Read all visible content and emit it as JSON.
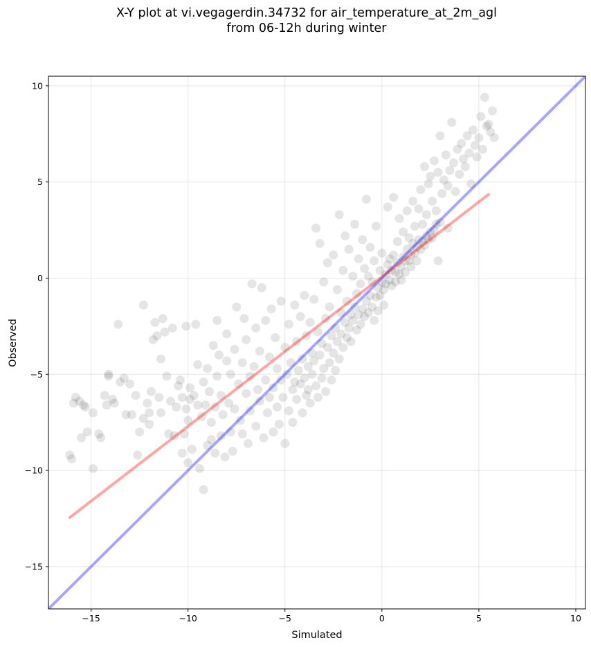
{
  "figure": {
    "title_line1": "X-Y plot at vi.vegagerdin.34732 for air_temperature_at_2m_agl",
    "title_line2": "from 06-12h during winter"
  },
  "chart_data": {
    "type": "scatter",
    "title": "X-Y plot at vi.vegagerdin.34732 for air_temperature_at_2m_agl from 06-12h during winter",
    "xlabel": "Simulated",
    "ylabel": "Observed",
    "xlim": [
      -17.2,
      10.5
    ],
    "ylim": [
      -17.2,
      10.5
    ],
    "xticks": [
      -15,
      -10,
      -5,
      0,
      5,
      10
    ],
    "yticks": [
      -15,
      -10,
      -5,
      0,
      5,
      10
    ],
    "xtick_labels": [
      "−15",
      "−10",
      "−5",
      "0",
      "5",
      "10"
    ],
    "ytick_labels": [
      "−15",
      "−10",
      "−5",
      "0",
      "5",
      "10"
    ],
    "grid": true,
    "point_color": "#000000",
    "point_alpha": 0.1,
    "identity_line": {
      "color": "#0000ff",
      "x": [
        -17.2,
        10.5
      ],
      "y": [
        -17.2,
        10.5
      ]
    },
    "regression_line": {
      "color": "#ff0000",
      "x": [
        -16.1,
        5.5
      ],
      "y": [
        -12.45,
        4.35
      ]
    },
    "points": [
      [
        -16.1,
        -9.2
      ],
      [
        -16.0,
        -9.4
      ],
      [
        -15.9,
        -6.5
      ],
      [
        -15.8,
        -6.2
      ],
      [
        -15.6,
        -6.4
      ],
      [
        -15.5,
        -8.3
      ],
      [
        -15.4,
        -6.6
      ],
      [
        -15.3,
        -6.7
      ],
      [
        -15.2,
        -8.0
      ],
      [
        -14.9,
        -7.0
      ],
      [
        -14.9,
        -9.9
      ],
      [
        -14.6,
        -8.1
      ],
      [
        -14.5,
        -8.3
      ],
      [
        -14.3,
        -6.1
      ],
      [
        -14.2,
        -6.6
      ],
      [
        -14.1,
        -5.0
      ],
      [
        -14.1,
        -5.1
      ],
      [
        -13.9,
        -6.3
      ],
      [
        -13.8,
        -6.5
      ],
      [
        -13.6,
        -2.4
      ],
      [
        -13.5,
        -5.4
      ],
      [
        -13.3,
        -5.2
      ],
      [
        -13.2,
        -7.1
      ],
      [
        -13.0,
        -5.5
      ],
      [
        -12.9,
        -7.1
      ],
      [
        -12.7,
        -6.1
      ],
      [
        -12.6,
        -9.2
      ],
      [
        -12.5,
        -8.0
      ],
      [
        -12.3,
        -1.4
      ],
      [
        -12.3,
        -7.3
      ],
      [
        -12.1,
        -6.5
      ],
      [
        -12.0,
        -7.0
      ],
      [
        -12.0,
        -7.6
      ],
      [
        -11.9,
        -5.9
      ],
      [
        -11.8,
        -3.2
      ],
      [
        -11.7,
        -2.3
      ],
      [
        -11.6,
        -3.0
      ],
      [
        -11.5,
        -6.2
      ],
      [
        -11.4,
        -4.2
      ],
      [
        -11.4,
        -7.0
      ],
      [
        -11.3,
        -2.1
      ],
      [
        -11.2,
        -2.8
      ],
      [
        -11.1,
        -5.1
      ],
      [
        -11.0,
        -8.1
      ],
      [
        -10.9,
        -6.4
      ],
      [
        -10.8,
        -2.6
      ],
      [
        -10.7,
        -8.2
      ],
      [
        -10.6,
        -6.7
      ],
      [
        -10.5,
        -5.6
      ],
      [
        -10.4,
        -5.3
      ],
      [
        -10.3,
        -9.1
      ],
      [
        -10.3,
        -6.2
      ],
      [
        -10.2,
        -8.1
      ],
      [
        -10.1,
        -2.5
      ],
      [
        -10.1,
        -6.8
      ],
      [
        -10.0,
        -9.6
      ],
      [
        -10.0,
        -7.4
      ],
      [
        -9.9,
        -5.7
      ],
      [
        -9.9,
        -6.3
      ],
      [
        -9.8,
        -8.9
      ],
      [
        -9.7,
        -6.1
      ],
      [
        -9.6,
        -2.4
      ],
      [
        -9.5,
        -4.5
      ],
      [
        -9.5,
        -6.6
      ],
      [
        -9.4,
        -9.9
      ],
      [
        -9.3,
        -7.2
      ],
      [
        -9.2,
        -11.0
      ],
      [
        -9.2,
        -5.4
      ],
      [
        -9.1,
        -6.6
      ],
      [
        -9.0,
        -8.7
      ],
      [
        -9.0,
        -4.7
      ],
      [
        -8.9,
        -5.9
      ],
      [
        -8.8,
        -7.5
      ],
      [
        -8.8,
        -8.4
      ],
      [
        -8.7,
        -3.5
      ],
      [
        -8.6,
        -6.7
      ],
      [
        -8.6,
        -9.1
      ],
      [
        -8.5,
        -2.2
      ],
      [
        -8.5,
        -5.1
      ],
      [
        -8.4,
        -4.0
      ],
      [
        -8.3,
        -6.1
      ],
      [
        -8.3,
        -8.2
      ],
      [
        -8.2,
        -7.1
      ],
      [
        -8.1,
        -9.3
      ],
      [
        -8.0,
        -4.3
      ],
      [
        -8.0,
        -2.9
      ],
      [
        -7.9,
        -6.5
      ],
      [
        -7.8,
        -8.0
      ],
      [
        -7.8,
        -5.0
      ],
      [
        -7.7,
        -9.0
      ],
      [
        -7.6,
        -3.7
      ],
      [
        -7.6,
        -6.8
      ],
      [
        -7.5,
        -1.5
      ],
      [
        -7.4,
        -5.5
      ],
      [
        -7.3,
        -7.4
      ],
      [
        -7.2,
        -8.1
      ],
      [
        -7.2,
        -4.4
      ],
      [
        -7.1,
        -2.1
      ],
      [
        -7.0,
        -6.0
      ],
      [
        -7.0,
        -3.2
      ],
      [
        -6.9,
        -8.6
      ],
      [
        -6.8,
        -5.1
      ],
      [
        -6.8,
        -6.9
      ],
      [
        -6.7,
        -0.3
      ],
      [
        -6.6,
        -4.6
      ],
      [
        -6.5,
        -7.7
      ],
      [
        -6.5,
        -2.6
      ],
      [
        -6.4,
        -5.8
      ],
      [
        -6.3,
        -3.8
      ],
      [
        -6.3,
        -6.4
      ],
      [
        -6.2,
        -0.5
      ],
      [
        -6.1,
        -8.3
      ],
      [
        -6.0,
        -5.3
      ],
      [
        -6.0,
        -2.2
      ],
      [
        -5.9,
        -7.0
      ],
      [
        -5.8,
        -4.1
      ],
      [
        -5.8,
        -6.2
      ],
      [
        -5.7,
        -1.6
      ],
      [
        -5.6,
        -5.7
      ],
      [
        -5.6,
        -8.0
      ],
      [
        -5.5,
        -3.1
      ],
      [
        -5.4,
        -6.7
      ],
      [
        -5.4,
        -4.7
      ],
      [
        -5.3,
        -7.6
      ],
      [
        -5.2,
        -1.2
      ],
      [
        -5.2,
        -5.3
      ],
      [
        -5.1,
        -6.2
      ],
      [
        -5.0,
        -3.6
      ],
      [
        -5.0,
        -8.6
      ],
      [
        -4.9,
        -5.0
      ],
      [
        -4.8,
        -2.4
      ],
      [
        -4.8,
        -6.9
      ],
      [
        -4.7,
        -4.4
      ],
      [
        -4.6,
        -7.5
      ],
      [
        -4.6,
        -5.8
      ],
      [
        -4.5,
        -1.4
      ],
      [
        -4.5,
        -5.4
      ],
      [
        -4.4,
        -3.3
      ],
      [
        -4.4,
        -6.3
      ],
      [
        -4.3,
        -4.8
      ],
      [
        -4.2,
        -5.5
      ],
      [
        -4.2,
        -2.0
      ],
      [
        -4.1,
        -7.0
      ],
      [
        -4.1,
        -4.2
      ],
      [
        -4.0,
        -5.2
      ],
      [
        -4.0,
        -0.9
      ],
      [
        -3.9,
        -6.1
      ],
      [
        -3.9,
        -3.0
      ],
      [
        -3.8,
        -4.6
      ],
      [
        -3.8,
        -5.8
      ],
      [
        -3.7,
        -2.3
      ],
      [
        -3.7,
        -6.5
      ],
      [
        -3.6,
        -3.9
      ],
      [
        -3.6,
        -5.0
      ],
      [
        -3.5,
        -1.1
      ],
      [
        -3.5,
        -4.3
      ],
      [
        -3.4,
        2.6
      ],
      [
        -3.4,
        -5.6
      ],
      [
        -3.3,
        -2.8
      ],
      [
        -3.3,
        -6.2
      ],
      [
        -3.2,
        -4.0
      ],
      [
        -3.2,
        1.8
      ],
      [
        -3.1,
        -3.4
      ],
      [
        -3.1,
        -5.2
      ],
      [
        -3.0,
        -0.2
      ],
      [
        -3.0,
        -4.7
      ],
      [
        -2.9,
        -2.1
      ],
      [
        -2.9,
        -5.9
      ],
      [
        -2.8,
        -3.6
      ],
      [
        -2.8,
        0.8
      ],
      [
        -2.7,
        -4.4
      ],
      [
        -2.7,
        -1.5
      ],
      [
        -2.6,
        -3.0
      ],
      [
        -2.6,
        -5.3
      ],
      [
        -2.5,
        1.2
      ],
      [
        -2.5,
        -3.9
      ],
      [
        -2.4,
        -2.6
      ],
      [
        -2.4,
        -4.8
      ],
      [
        -2.3,
        -0.6
      ],
      [
        -2.3,
        -3.3
      ],
      [
        -2.2,
        3.3
      ],
      [
        -2.2,
        -4.2
      ],
      [
        -2.1,
        -1.8
      ],
      [
        -2.1,
        -2.9
      ],
      [
        -2.0,
        0.4
      ],
      [
        -2.0,
        -3.6
      ],
      [
        -1.9,
        -2.3
      ],
      [
        -1.9,
        2.2
      ],
      [
        -1.8,
        -3.1
      ],
      [
        -1.8,
        -1.2
      ],
      [
        -1.7,
        -2.6
      ],
      [
        -1.7,
        1.5
      ],
      [
        -1.6,
        -1.9
      ],
      [
        -1.6,
        -3.3
      ],
      [
        -1.5,
        0.1
      ],
      [
        -1.5,
        -2.2
      ],
      [
        -1.4,
        -1.5
      ],
      [
        -1.4,
        2.8
      ],
      [
        -1.3,
        -2.7
      ],
      [
        -1.3,
        -0.8
      ],
      [
        -1.2,
        -1.9
      ],
      [
        -1.2,
        1.0
      ],
      [
        -1.1,
        -2.4
      ],
      [
        -1.1,
        -0.3
      ],
      [
        -1.0,
        -1.6
      ],
      [
        -1.0,
        2.0
      ],
      [
        -0.9,
        -2.0
      ],
      [
        -0.9,
        0.5
      ],
      [
        -0.8,
        -1.2
      ],
      [
        -0.8,
        4.1
      ],
      [
        -0.7,
        -1.8
      ],
      [
        -0.7,
        0.1
      ],
      [
        -0.6,
        -0.9
      ],
      [
        -0.6,
        1.6
      ],
      [
        -0.5,
        -1.5
      ],
      [
        -0.5,
        -0.2
      ],
      [
        -0.4,
        -2.2
      ],
      [
        -0.4,
        0.9
      ],
      [
        -0.3,
        -1.0
      ],
      [
        -0.3,
        2.7
      ],
      [
        -0.2,
        -0.5
      ],
      [
        -0.2,
        -1.7
      ],
      [
        -0.1,
        0.4
      ],
      [
        -0.1,
        -0.9
      ],
      [
        0.0,
        -0.2
      ],
      [
        0.0,
        1.3
      ],
      [
        0.1,
        -0.6
      ],
      [
        0.1,
        -1.4
      ],
      [
        0.2,
        0.2
      ],
      [
        0.2,
        -0.3
      ],
      [
        0.3,
        3.7
      ],
      [
        0.3,
        0.7
      ],
      [
        0.4,
        -0.1
      ],
      [
        0.4,
        1.0
      ],
      [
        0.5,
        -0.4
      ],
      [
        0.5,
        0.4
      ],
      [
        0.6,
        4.2
      ],
      [
        0.6,
        1.2
      ],
      [
        0.7,
        0.3
      ],
      [
        0.7,
        -0.2
      ],
      [
        0.8,
        0.8
      ],
      [
        0.8,
        1.9
      ],
      [
        0.9,
        0.2
      ],
      [
        0.9,
        3.1
      ],
      [
        1.0,
        0.6
      ],
      [
        1.0,
        -0.1
      ],
      [
        1.1,
        1.1
      ],
      [
        1.1,
        2.4
      ],
      [
        1.2,
        0.9
      ],
      [
        1.2,
        0.3
      ],
      [
        1.3,
        1.5
      ],
      [
        1.3,
        3.5
      ],
      [
        1.4,
        0.9
      ],
      [
        1.4,
        2.1
      ],
      [
        1.5,
        1.2
      ],
      [
        1.5,
        0.6
      ],
      [
        1.6,
        1.8
      ],
      [
        1.6,
        4.0
      ],
      [
        1.7,
        1.3
      ],
      [
        1.7,
        2.7
      ],
      [
        1.8,
        1.6
      ],
      [
        1.8,
        0.9
      ],
      [
        1.9,
        2.0
      ],
      [
        1.9,
        3.6
      ],
      [
        2.0,
        1.5
      ],
      [
        2.0,
        4.6
      ],
      [
        2.1,
        1.9
      ],
      [
        2.1,
        2.8
      ],
      [
        2.2,
        1.7
      ],
      [
        2.2,
        5.8
      ],
      [
        2.3,
        2.2
      ],
      [
        2.3,
        3.3
      ],
      [
        2.4,
        2.0
      ],
      [
        2.4,
        4.9
      ],
      [
        2.5,
        2.4
      ],
      [
        2.5,
        5.3
      ],
      [
        2.6,
        2.1
      ],
      [
        2.6,
        4.0
      ],
      [
        2.7,
        2.5
      ],
      [
        2.7,
        6.1
      ],
      [
        2.8,
        2.8
      ],
      [
        2.8,
        3.5
      ],
      [
        2.9,
        0.9
      ],
      [
        2.9,
        5.5
      ],
      [
        3.0,
        2.9
      ],
      [
        3.0,
        7.4
      ],
      [
        3.1,
        4.4
      ],
      [
        3.2,
        5.1
      ],
      [
        3.3,
        6.4
      ],
      [
        3.4,
        4.8
      ],
      [
        3.4,
        2.6
      ],
      [
        3.5,
        5.6
      ],
      [
        3.6,
        8.1
      ],
      [
        3.7,
        6.0
      ],
      [
        3.8,
        4.5
      ],
      [
        3.9,
        6.7
      ],
      [
        4.0,
        5.4
      ],
      [
        4.1,
        7.0
      ],
      [
        4.2,
        6.2
      ],
      [
        4.3,
        5.8
      ],
      [
        4.4,
        7.4
      ],
      [
        4.5,
        6.5
      ],
      [
        4.6,
        4.9
      ],
      [
        4.7,
        7.7
      ],
      [
        4.8,
        6.9
      ],
      [
        4.9,
        6.3
      ],
      [
        5.0,
        7.3
      ],
      [
        5.1,
        8.4
      ],
      [
        5.2,
        6.7
      ],
      [
        5.3,
        9.4
      ],
      [
        5.4,
        7.9
      ],
      [
        5.5,
        8.0
      ],
      [
        5.6,
        7.6
      ],
      [
        5.7,
        8.7
      ],
      [
        5.8,
        7.3
      ]
    ]
  }
}
